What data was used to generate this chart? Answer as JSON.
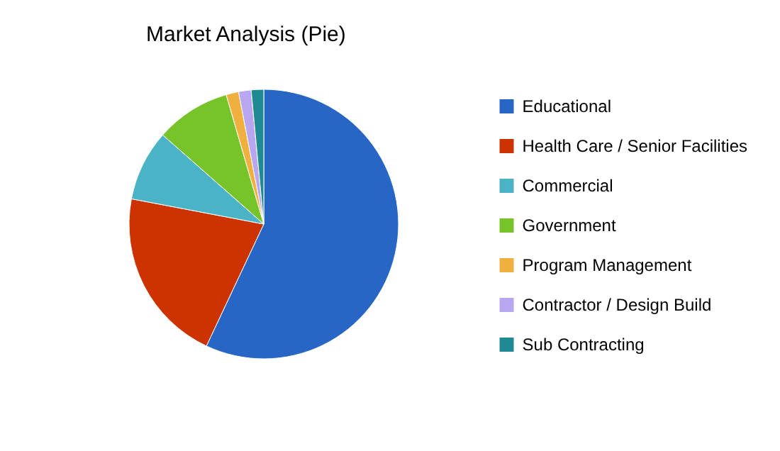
{
  "chart_data": {
    "type": "pie",
    "title": "Market Analysis (Pie)",
    "categories": [
      "Educational",
      "Health Care / Senior Facilities",
      "Commercial",
      "Government",
      "Program Management",
      "Contractor / Design Build",
      "Sub Contracting"
    ],
    "values": [
      57,
      21,
      8.5,
      9,
      1.5,
      1.5,
      1.5
    ],
    "colors": [
      "#2766c4",
      "#cc3300",
      "#4ab3c6",
      "#77c42a",
      "#f0b040",
      "#b8a6f0",
      "#1f8a94"
    ],
    "legend": "right"
  }
}
